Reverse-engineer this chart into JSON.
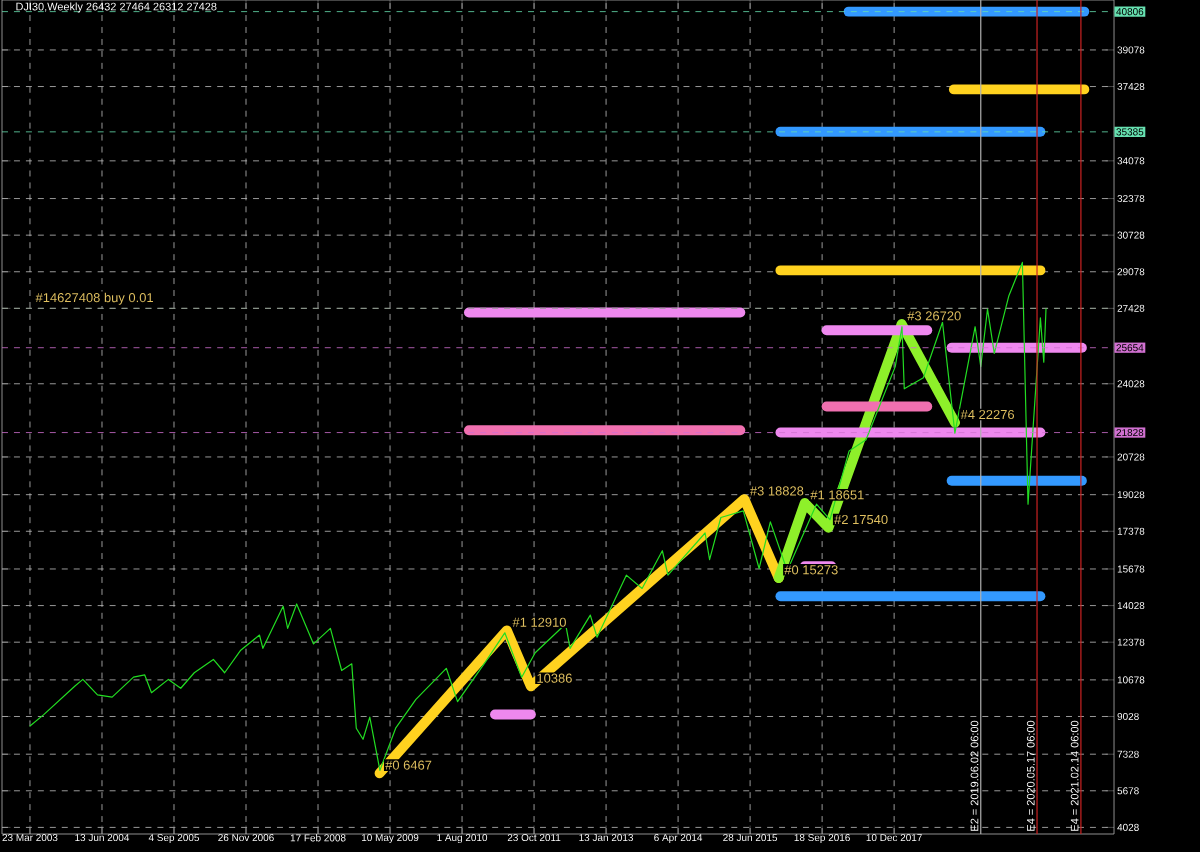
{
  "chart_data": {
    "type": "line",
    "title": "DJI30,Weekly  26432 27464 26312 27428",
    "xlim": [
      "2002-09-30",
      "2021-09-08"
    ],
    "ylim": [
      3730,
      41330
    ],
    "xticks": [
      {
        "value": "2003-03-23",
        "label": "23 Mar 2003"
      },
      {
        "value": "2004-06-13",
        "label": "13 Jun 2004"
      },
      {
        "value": "2005-09-04",
        "label": "4 Sep 2005"
      },
      {
        "value": "2006-11-26",
        "label": "26 Nov 2006"
      },
      {
        "value": "2008-02-17",
        "label": "17 Feb 2008"
      },
      {
        "value": "2009-05-10",
        "label": "10 May 2009"
      },
      {
        "value": "2010-08-01",
        "label": "1 Aug 2010"
      },
      {
        "value": "2011-10-23",
        "label": "23 Oct 2011"
      },
      {
        "value": "2013-01-13",
        "label": "13 Jan 2013"
      },
      {
        "value": "2014-04-06",
        "label": "6 Apr 2014"
      },
      {
        "value": "2015-06-28",
        "label": "28 Jun 2015"
      },
      {
        "value": "2016-09-18",
        "label": "18 Sep 2016"
      },
      {
        "value": "2017-12-10",
        "label": "10 Dec 2017"
      }
    ],
    "yticks": [
      4028,
      5678,
      7328,
      9028,
      10678,
      12378,
      14028,
      15678,
      17378,
      19028,
      20728,
      24028,
      27428,
      29078,
      30728,
      32378,
      34078,
      37428,
      39078
    ],
    "grid": true,
    "series": [
      {
        "color": "#22dd22",
        "x": [
          "2003-03-23",
          "2003-06-15",
          "2003-12-28",
          "2004-02-15",
          "2004-05-16",
          "2004-08-15",
          "2004-12-26",
          "2005-03-06",
          "2005-04-17",
          "2005-07-31",
          "2005-10-16",
          "2006-01-08",
          "2006-05-07",
          "2006-07-16",
          "2006-10-22",
          "2007-02-18",
          "2007-03-11",
          "2007-07-15",
          "2007-08-12",
          "2007-10-07",
          "2008-01-20",
          "2008-05-04",
          "2008-07-13",
          "2008-09-14",
          "2008-10-12",
          "2008-11-23",
          "2009-01-04",
          "2009-03-08",
          "2009-06-14",
          "2009-10-18",
          "2010-04-25",
          "2010-07-04",
          "2010-12-26",
          "2011-04-24",
          "2011-08-07",
          "2011-10-30",
          "2012-05-06",
          "2012-06-03",
          "2012-10-07",
          "2012-11-18",
          "2013-05-19",
          "2013-08-25",
          "2013-12-29",
          "2014-02-02",
          "2014-09-21",
          "2014-10-19",
          "2014-12-28",
          "2015-05-17",
          "2015-08-23",
          "2015-11-01",
          "2016-02-14",
          "2016-08-14",
          "2016-11-06",
          "2017-03-05",
          "2017-06-18",
          "2017-12-17",
          "2018-01-28",
          "2018-02-11",
          "2018-06-10",
          "2018-10-07",
          "2018-12-23",
          "2019-04-28",
          "2019-06-02",
          "2019-07-14",
          "2019-08-25",
          "2019-11-24",
          "2020-02-16",
          "2020-03-22",
          "2020-06-07",
          "2020-06-28",
          "2020-07-12"
        ],
        "values": [
          8600,
          9100,
          10400,
          10700,
          10000,
          9900,
          10800,
          10900,
          10100,
          10700,
          10300,
          11000,
          11600,
          11000,
          12000,
          12700,
          12100,
          14000,
          13000,
          14100,
          12300,
          13000,
          11100,
          11400,
          8500,
          8000,
          9000,
          6600,
          8500,
          9800,
          11200,
          9700,
          11500,
          12800,
          10800,
          11900,
          13200,
          12100,
          13600,
          12600,
          15400,
          14800,
          16500,
          15400,
          17300,
          16100,
          18000,
          18300,
          15700,
          17800,
          15600,
          18600,
          17900,
          21000,
          21500,
          24800,
          26600,
          23800,
          24300,
          26800,
          21800,
          26600,
          24800,
          27400,
          25400,
          28000,
          29500,
          18600,
          27000,
          25000,
          27428
        ]
      },
      {
        "color": "#ffd21f",
        "x": [
          "2009-03-06",
          "2011-05-07",
          "2011-10-03",
          "2015-05-23",
          "2015-12-23"
        ],
        "values": [
          6467,
          12910,
          10386,
          18828,
          15273
        ]
      },
      {
        "color": "#8ef02a",
        "x": [
          "2015-12-23",
          "2016-06-02",
          "2016-10-28",
          "2018-01-26",
          "2018-12-24"
        ],
        "values": [
          15273,
          18651,
          17540,
          26720,
          22276
        ]
      },
      {
        "color": "#3399ff",
        "x": [
          "2017-03-02",
          "2021-03-07"
        ],
        "values": [
          40806,
          40806
        ]
      },
      {
        "color": "#ffd21f",
        "x": [
          "2018-12-17",
          "2021-03-07"
        ],
        "values": [
          37300,
          37300
        ]
      },
      {
        "color": "#3399ff",
        "x": [
          "2016-01-03",
          "2020-06-07"
        ],
        "values": [
          35385,
          35385
        ]
      },
      {
        "color": "#ffd21f",
        "x": [
          "2016-01-03",
          "2020-06-07"
        ],
        "values": [
          29140,
          29140
        ]
      },
      {
        "color": "#ee88ee",
        "x": [
          "2010-09-13",
          "2015-04-28"
        ],
        "values": [
          27240,
          27240
        ]
      },
      {
        "color": "#ee88ee",
        "x": [
          "2016-10-16",
          "2018-07-04"
        ],
        "values": [
          26440,
          26440
        ]
      },
      {
        "color": "#ee88ee",
        "x": [
          "2018-12-03",
          "2021-02-20"
        ],
        "values": [
          25654,
          25654
        ]
      },
      {
        "color": "#f070b0",
        "x": [
          "2016-10-16",
          "2018-07-04"
        ],
        "values": [
          23000,
          23000
        ]
      },
      {
        "color": "#f070b0",
        "x": [
          "2010-09-13",
          "2015-04-28"
        ],
        "values": [
          21930,
          21930
        ]
      },
      {
        "color": "#ee88ee",
        "x": [
          "2016-01-03",
          "2020-06-07"
        ],
        "values": [
          21828,
          21828
        ]
      },
      {
        "color": "#3399ff",
        "x": [
          "2018-12-03",
          "2021-02-20"
        ],
        "values": [
          19660,
          19660
        ]
      },
      {
        "color": "#ee88ee",
        "x": [
          "2016-06-02",
          "2016-11-15"
        ],
        "values": [
          15800,
          15800
        ]
      },
      {
        "color": "#3399ff",
        "x": [
          "2016-01-03",
          "2020-06-07"
        ],
        "values": [
          14450,
          14450
        ]
      },
      {
        "color": "#ee88ee",
        "x": [
          "2011-02-22",
          "2011-10-03"
        ],
        "values": [
          9120,
          9120
        ]
      }
    ],
    "ref_lines": [
      {
        "axis": "y",
        "value": 40806,
        "label": "40806",
        "color": "#66e0b0"
      },
      {
        "axis": "y",
        "value": 35385,
        "label": "35385",
        "color": "#66e0b0"
      },
      {
        "axis": "y",
        "value": 27428,
        "color": "#8a9a8a"
      },
      {
        "axis": "y",
        "value": 25654,
        "label": "25654",
        "color": "#d070d0"
      },
      {
        "axis": "y",
        "value": 21828,
        "label": "21828",
        "color": "#d070d0"
      },
      {
        "axis": "x",
        "value": "2019-06-02",
        "label": "E2 = 2019.06.02 06:00",
        "color": "#b0b0b0"
      },
      {
        "axis": "x",
        "value": "2020-05-17",
        "label": "E4 = 2020.05.17 06:00",
        "color": "#cc2222"
      },
      {
        "axis": "x",
        "value": "2021-02-14",
        "label": "E4 = 2021.02.14 06:00",
        "color": "#cc2222"
      }
    ],
    "annotations": [
      {
        "text": "#14627408 buy 0.01",
        "x": "2003-03-23",
        "y": 27428
      },
      {
        "text": "#0 6467",
        "x": "2009-03-06",
        "y": 6467
      },
      {
        "text": "#1 12910",
        "x": "2011-05-07",
        "y": 12910
      },
      {
        "text": "10386",
        "x": "2011-10-03",
        "y": 10386
      },
      {
        "text": "#3 18828",
        "x": "2015-05-23",
        "y": 18828
      },
      {
        "text": "#0 15273",
        "x": "2015-12-23",
        "y": 15273
      },
      {
        "text": "#1 18651",
        "x": "2016-06-02",
        "y": 18651
      },
      {
        "text": "#2 17540",
        "x": "2016-10-28",
        "y": 17540
      },
      {
        "text": "#3 26720",
        "x": "2018-01-26",
        "y": 26720
      },
      {
        "text": "#4 22276",
        "x": "2018-12-24",
        "y": 22276
      }
    ]
  }
}
